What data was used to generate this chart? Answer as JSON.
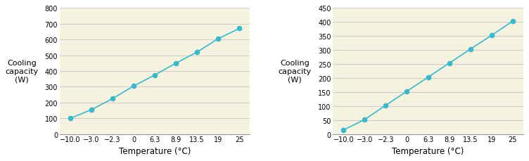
{
  "chart1": {
    "x_labels": [
      "−10.0",
      "−3.0",
      "−2.3",
      "0",
      "6.3",
      "8.9",
      "13.5",
      "19",
      "25"
    ],
    "y_values": [
      100,
      155,
      225,
      305,
      375,
      450,
      520,
      605,
      670
    ],
    "ylim": [
      0,
      800
    ],
    "yticks": [
      0,
      100,
      200,
      300,
      400,
      500,
      600,
      700,
      800
    ],
    "ylabel": "Cooling\ncapacity\n(W)",
    "xlabel": "Temperature (°C)"
  },
  "chart2": {
    "x_labels": [
      "−10.0",
      "−3.0",
      "−2.3",
      "0",
      "6.3",
      "8.9",
      "13.5",
      "19",
      "25"
    ],
    "y_values": [
      15,
      52,
      103,
      153,
      203,
      253,
      303,
      352,
      403
    ],
    "ylim": [
      0,
      450
    ],
    "yticks": [
      0,
      50,
      100,
      150,
      200,
      250,
      300,
      350,
      400,
      450
    ],
    "ylabel": "Cooling\ncapacity\n(W)",
    "xlabel": "Temperature (°C)"
  },
  "line_color": "#3ab8cc",
  "marker_color": "#3ab8cc",
  "bg_color": "#f5f2e0",
  "grid_color": "#c8c8c8",
  "font_size_tick": 7.0,
  "font_size_label": 8.5,
  "font_size_ylabel": 8.0
}
